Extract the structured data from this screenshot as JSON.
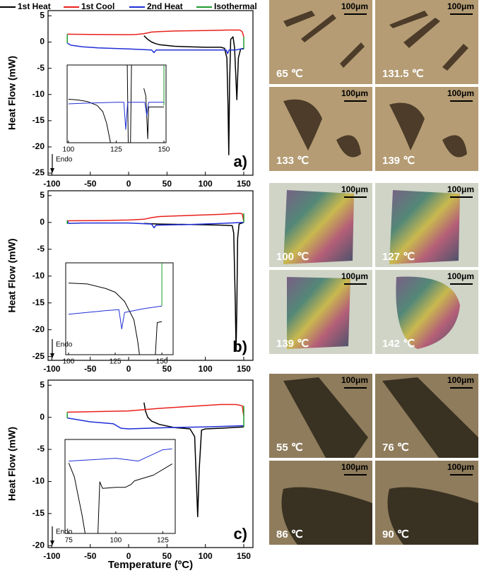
{
  "chart_data": [
    {
      "type": "line",
      "panel_label": "a)",
      "y_label": "Heat Flow (mW)",
      "endo_label": "Endo",
      "xlim": [
        -105,
        162
      ],
      "ylim": [
        -25.4,
        6
      ],
      "xticks": [
        -100,
        -50,
        0,
        50,
        100,
        150
      ],
      "yticks": [
        5,
        0,
        -5,
        -10,
        -15,
        -20,
        -25
      ],
      "series": [
        {
          "name": "1st Heat",
          "color": "#000000",
          "x": [
            20,
            25,
            30,
            35,
            40,
            60,
            80,
            100,
            120,
            125,
            128,
            129.5,
            130.5,
            131.5,
            133,
            136,
            138,
            139.5,
            141,
            143,
            146,
            150
          ],
          "values": [
            1.2,
            0.5,
            0,
            -0.3,
            -0.5,
            -0.8,
            -0.9,
            -1,
            -1,
            -1.2,
            -3,
            -12,
            -21.5,
            -8,
            0.5,
            1,
            -1,
            -6,
            -11,
            -3,
            -1.3,
            -1.3
          ]
        },
        {
          "name": "1st Cool",
          "color": "#e8211c",
          "x": [
            -80,
            -50,
            0,
            10,
            20,
            30,
            40,
            60,
            100,
            130,
            145,
            148,
            150
          ],
          "values": [
            1.5,
            1.45,
            1.4,
            1.45,
            1.6,
            1.9,
            2.0,
            2.1,
            2.2,
            2.3,
            2.3,
            2.0,
            1.0
          ]
        },
        {
          "name": "2nd Heat",
          "color": "#1f2fd6",
          "x": [
            -80,
            -75,
            -60,
            -40,
            0,
            30,
            33,
            36,
            40,
            80,
            120,
            127,
            129,
            131,
            140,
            150
          ],
          "values": [
            -0.2,
            -0.6,
            -0.9,
            -1.1,
            -1.3,
            -1.5,
            -2,
            -1.5,
            -1.5,
            -1.5,
            -1.5,
            -1.5,
            -2.2,
            -1.5,
            -1.5,
            -1.2
          ]
        },
        {
          "name": "Isothermal",
          "color": "#1e9a2e",
          "x": [
            -80,
            -80,
            null,
            150,
            150
          ],
          "values": [
            1.5,
            -0.2,
            null,
            -1.3,
            1.0
          ]
        }
      ],
      "inset": {
        "type": "line",
        "xlim": [
          99.3,
          151.1
        ],
        "ylim": [
          0,
          10
        ],
        "xticks": [
          100,
          125,
          150
        ],
        "series": [
          {
            "color": "#000000",
            "x": [
              100,
              105,
              110,
              115,
              118,
              120,
              122,
              null,
              130.8,
              131.3,
              null,
              132.5,
              133,
              null,
              139.5,
              140.5,
              141.5,
              142,
              150
            ],
            "values": [
              5.6,
              5.5,
              5.3,
              4.8,
              4,
              2.5,
              0,
              null,
              10,
              0,
              null,
              0,
              10,
              null,
              7,
              6,
              0.5,
              4.6,
              4.6
            ]
          },
          {
            "color": "#1f2fd6",
            "x": [
              100,
              110,
              125,
              129,
              130,
              131,
              135,
              140,
              141,
              142,
              150
            ],
            "values": [
              5,
              5.1,
              5.2,
              5.2,
              1.7,
              5.2,
              5.2,
              5.2,
              3.5,
              5.2,
              5.2
            ]
          },
          {
            "color": "#1e9a2e",
            "x": [
              150,
              150
            ],
            "values": [
              4.8,
              10
            ]
          }
        ]
      }
    },
    {
      "type": "line",
      "panel_label": "b)",
      "y_label": "Heat Flow (mW)",
      "endo_label": "Endo",
      "xlim": [
        -105,
        162
      ],
      "ylim": [
        -25.7,
        5.9
      ],
      "xticks": [
        -100,
        -50,
        0,
        50,
        100,
        150
      ],
      "yticks": [
        5,
        0,
        -5,
        -10,
        -15,
        -20,
        -25
      ],
      "series": [
        {
          "color": "#000000",
          "x": [
            20,
            40,
            80,
            120,
            135,
            137,
            139,
            140,
            141,
            142,
            144,
            150
          ],
          "values": [
            -0.2,
            -0.3,
            -0.4,
            -0.5,
            -0.6,
            -2,
            -15,
            -24,
            -16,
            -3,
            -0.3,
            0
          ]
        },
        {
          "color": "#e8211c",
          "x": [
            -80,
            -40,
            0,
            20,
            30,
            40,
            80,
            120,
            145,
            148,
            150
          ],
          "values": [
            0.3,
            0.35,
            0.45,
            0.6,
            0.9,
            1.1,
            1.3,
            1.5,
            1.7,
            1.6,
            0.2
          ]
        },
        {
          "color": "#1f2fd6",
          "x": [
            -80,
            -78,
            -60,
            0,
            30,
            33,
            36,
            40,
            80,
            120,
            150
          ],
          "values": [
            0.3,
            -0.2,
            -0.1,
            -0.1,
            -0.3,
            -1.0,
            -0.5,
            -0.5,
            -0.4,
            -0.2,
            0
          ]
        },
        {
          "color": "#1e9a2e",
          "x": [
            -80,
            -80,
            null,
            150,
            150
          ],
          "values": [
            0.4,
            -0.3,
            null,
            0,
            1.7
          ]
        }
      ],
      "inset": {
        "type": "line",
        "xlim": [
          98.5,
          156
        ],
        "ylim": [
          0,
          10
        ],
        "xticks": [
          100,
          125,
          150
        ],
        "series": [
          {
            "color": "#000000",
            "x": [
              100,
              110,
              120,
              125,
              130,
              135,
              137,
              138,
              null,
              146.5,
              147.5,
              150
            ],
            "values": [
              7.8,
              7.7,
              7.2,
              6.8,
              5.8,
              3.8,
              1.5,
              0,
              null,
              0,
              3.5,
              3.6
            ]
          },
          {
            "color": "#1f2fd6",
            "x": [
              100,
              120,
              127,
              128.5,
              130,
              140,
              150
            ],
            "values": [
              4.4,
              4.8,
              4.9,
              2.8,
              4.6,
              5.0,
              5.3
            ]
          },
          {
            "color": "#1e9a2e",
            "x": [
              150,
              150
            ],
            "values": [
              5.3,
              10
            ]
          }
        ]
      }
    },
    {
      "type": "line",
      "panel_label": "c)",
      "y_label": "Heat Flow (mW)",
      "endo_label": "Endo",
      "x_label": "Temperature (ºC)",
      "xlim": [
        -105,
        162
      ],
      "ylim": [
        -20.3,
        5.8
      ],
      "xticks": [
        -100,
        -50,
        0,
        50,
        100,
        150
      ],
      "yticks": [
        5,
        0,
        -5,
        -10,
        -15,
        -20
      ],
      "series": [
        {
          "color": "#000000",
          "x": [
            20,
            22,
            25,
            30,
            40,
            60,
            80,
            86,
            88,
            90,
            92,
            95,
            100,
            120,
            150
          ],
          "values": [
            2.3,
            1,
            0,
            -0.6,
            -1.1,
            -1.6,
            -1.8,
            -3,
            -9,
            -15.5,
            -8,
            -2,
            -1.8,
            -1.7,
            -1.5
          ]
        },
        {
          "color": "#e8211c",
          "x": [
            -80,
            -40,
            0,
            40,
            80,
            120,
            140,
            148,
            150
          ],
          "values": [
            0.8,
            0.9,
            1.0,
            1.4,
            1.7,
            2.0,
            2.0,
            1.8,
            0.2
          ]
        },
        {
          "color": "#1f2fd6",
          "x": [
            -80,
            -70,
            -50,
            -20,
            -10,
            0,
            50,
            100,
            150
          ],
          "values": [
            -0.1,
            -0.3,
            -0.7,
            -1,
            -1.7,
            -1.8,
            -1.6,
            -1.5,
            -1.3
          ]
        },
        {
          "color": "#1e9a2e",
          "x": [
            -80,
            -80,
            null,
            150,
            150
          ],
          "values": [
            0.8,
            -0.1,
            null,
            -1.5,
            1.8
          ]
        }
      ],
      "inset": {
        "type": "line",
        "xlim": [
          73,
          131.6
        ],
        "ylim": [
          0,
          10
        ],
        "xticks": [
          75,
          100,
          125
        ],
        "series": [
          {
            "color": "#000000",
            "x": [
              75,
              78,
              80,
              82,
              83.7,
              null,
              90.5,
              91.5,
              93,
              100,
              105,
              108,
              110,
              120,
              130
            ],
            "values": [
              7.5,
              6,
              4,
              2,
              0,
              null,
              0,
              5.5,
              4.8,
              4.9,
              4.9,
              5.2,
              5.6,
              6.2,
              7.4
            ]
          },
          {
            "color": "#1f2fd6",
            "x": [
              75,
              100,
              112,
              125,
              130
            ],
            "values": [
              7.7,
              8.0,
              7.7,
              8.9,
              9.0
            ]
          }
        ]
      }
    }
  ],
  "micrographs": [
    {
      "panels": [
        {
          "label": "65 ℃",
          "scale": "100μm"
        },
        {
          "label": "131.5 ℃",
          "scale": "100μm"
        },
        {
          "label": "133 ℃",
          "scale": "100μm"
        },
        {
          "label": "139 ℃",
          "scale": "100μm"
        }
      ]
    },
    {
      "panels": [
        {
          "label": "100 ℃",
          "scale": "100μm"
        },
        {
          "label": "127 ℃",
          "scale": "100μm"
        },
        {
          "label": "139 ℃",
          "scale": "100μm"
        },
        {
          "label": "142 ℃",
          "scale": "100μm"
        }
      ]
    },
    {
      "panels": [
        {
          "label": "55 ℃",
          "scale": "100μm"
        },
        {
          "label": "76 ℃",
          "scale": "100μm"
        },
        {
          "label": "86 ℃",
          "scale": "100μm"
        },
        {
          "label": "90 ℃",
          "scale": "100μm"
        }
      ]
    }
  ]
}
